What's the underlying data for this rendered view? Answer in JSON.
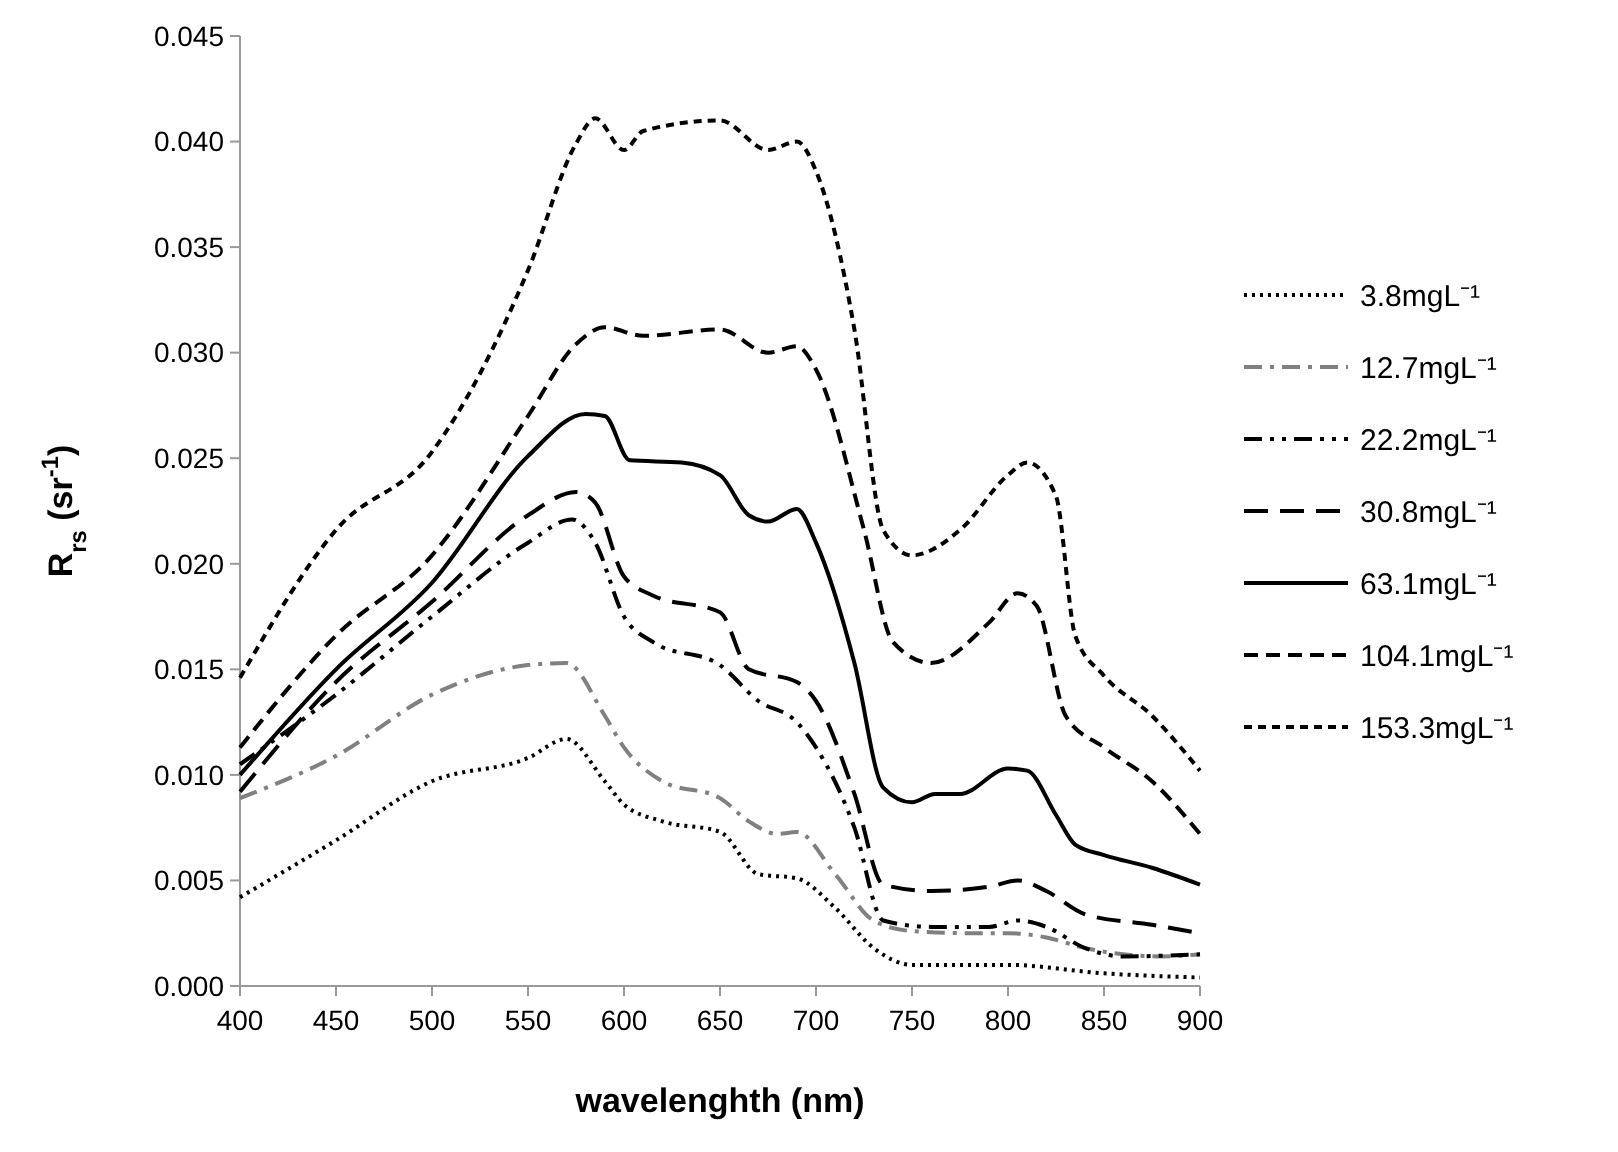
{
  "chart_data": {
    "type": "line",
    "xlabel": "wavelenghth (nm)",
    "ylabel": "R$_{rs}$ (sr$^{-1}$)",
    "xlim": [
      400,
      900
    ],
    "xticks": [
      400,
      450,
      500,
      550,
      600,
      650,
      700,
      750,
      800,
      850,
      900
    ],
    "ylim": [
      0,
      0.045
    ],
    "yticks": [
      {
        "value": 0,
        "label": "0.000"
      },
      {
        "value": 0.005,
        "label": "0.005"
      },
      {
        "value": 0.01,
        "label": "0.010"
      },
      {
        "value": 0.015,
        "label": "0.015"
      },
      {
        "value": 0.02,
        "label": "0.020"
      },
      {
        "value": 0.025,
        "label": "0.025"
      },
      {
        "value": 0.03,
        "label": "0.030"
      },
      {
        "value": 0.035,
        "label": "0.035"
      },
      {
        "value": 0.04,
        "label": "0.040"
      },
      {
        "value": 0.045,
        "label": "0.045"
      }
    ],
    "grid": false,
    "legend": "right",
    "marker": "none",
    "series": [
      {
        "name": "3.8mgL⁻¹",
        "color": "#000000",
        "line_style": "dotted",
        "x": [
          400,
          450,
          500,
          550,
          570,
          590,
          600,
          620,
          650,
          670,
          690,
          710,
          730,
          750,
          800,
          850,
          900
        ],
        "values": [
          0.0042,
          0.0069,
          0.0097,
          0.0108,
          0.0117,
          0.0097,
          0.0086,
          0.0078,
          0.0073,
          0.0053,
          0.0051,
          0.0037,
          0.0018,
          0.001,
          0.001,
          0.0006,
          0.0004
        ]
      },
      {
        "name": "12.7mgL⁻¹",
        "color": "#808080",
        "line_style": "dashdot",
        "x": [
          400,
          450,
          500,
          550,
          570,
          590,
          600,
          620,
          650,
          665,
          680,
          690,
          710,
          730,
          750,
          780,
          800,
          820,
          840,
          860,
          880,
          900
        ],
        "values": [
          0.0089,
          0.0109,
          0.0138,
          0.0152,
          0.0153,
          0.0128,
          0.0113,
          0.0097,
          0.0089,
          0.0078,
          0.0072,
          0.0073,
          0.0053,
          0.0031,
          0.0026,
          0.0025,
          0.0025,
          0.0023,
          0.0018,
          0.0015,
          0.0014,
          0.0015
        ]
      },
      {
        "name": "22.2mgL⁻¹",
        "color": "#000000",
        "line_style": "dashdotdot",
        "x": [
          400,
          450,
          500,
          550,
          573,
          585,
          600,
          615,
          650,
          670,
          690,
          700,
          720,
          735,
          760,
          790,
          805,
          820,
          840,
          860,
          900
        ],
        "values": [
          0.0105,
          0.0138,
          0.0175,
          0.021,
          0.0221,
          0.021,
          0.0175,
          0.0163,
          0.0152,
          0.0135,
          0.0125,
          0.0113,
          0.0075,
          0.0031,
          0.0028,
          0.0028,
          0.0031,
          0.0028,
          0.0018,
          0.0014,
          0.0015
        ]
      },
      {
        "name": "30.8mgL⁻¹",
        "color": "#000000",
        "line_style": "longdash",
        "x": [
          400,
          450,
          500,
          550,
          575,
          585,
          600,
          615,
          650,
          665,
          690,
          700,
          720,
          735,
          760,
          790,
          805,
          820,
          840,
          875,
          900
        ],
        "values": [
          0.0092,
          0.0144,
          0.0182,
          0.0223,
          0.0234,
          0.0229,
          0.0194,
          0.0185,
          0.0177,
          0.015,
          0.0144,
          0.0135,
          0.0091,
          0.0048,
          0.0045,
          0.0047,
          0.005,
          0.0045,
          0.0034,
          0.0029,
          0.0025
        ]
      },
      {
        "name": "63.1mgL⁻¹",
        "color": "#000000",
        "line_style": "solid",
        "x": [
          400,
          450,
          500,
          550,
          580,
          590,
          603,
          630,
          650,
          665,
          675,
          690,
          700,
          720,
          735,
          750,
          762,
          775,
          800,
          810,
          825,
          835,
          850,
          875,
          900
        ],
        "values": [
          0.01,
          0.015,
          0.0191,
          0.0251,
          0.0271,
          0.027,
          0.0249,
          0.0248,
          0.0242,
          0.0223,
          0.022,
          0.0226,
          0.021,
          0.0153,
          0.0094,
          0.0087,
          0.0091,
          0.0091,
          0.0103,
          0.0102,
          0.0081,
          0.0067,
          0.0062,
          0.0056,
          0.0048
        ]
      },
      {
        "name": "104.1mgL⁻¹",
        "color": "#000000",
        "line_style": "dashed",
        "x": [
          400,
          450,
          500,
          550,
          575,
          590,
          610,
          650,
          675,
          690,
          700,
          725,
          740,
          760,
          790,
          805,
          815,
          830,
          850,
          875,
          900
        ],
        "values": [
          0.0113,
          0.0166,
          0.0204,
          0.027,
          0.0304,
          0.0312,
          0.0308,
          0.0311,
          0.03,
          0.0303,
          0.0292,
          0.0216,
          0.0163,
          0.0153,
          0.0172,
          0.0186,
          0.018,
          0.0128,
          0.0113,
          0.0097,
          0.0072
        ]
      },
      {
        "name": "153.3mgL⁻¹",
        "color": "#000000",
        "line_style": "shortdash",
        "x": [
          400,
          450,
          500,
          550,
          575,
          585,
          600,
          610,
          650,
          675,
          690,
          700,
          720,
          735,
          750,
          775,
          800,
          810,
          825,
          835,
          850,
          875,
          900
        ],
        "values": [
          0.0146,
          0.0216,
          0.0253,
          0.0339,
          0.0399,
          0.0411,
          0.0396,
          0.0405,
          0.041,
          0.0396,
          0.04,
          0.0386,
          0.0311,
          0.0216,
          0.0204,
          0.0216,
          0.0242,
          0.0248,
          0.0232,
          0.0166,
          0.0147,
          0.0128,
          0.0102
        ]
      }
    ]
  }
}
